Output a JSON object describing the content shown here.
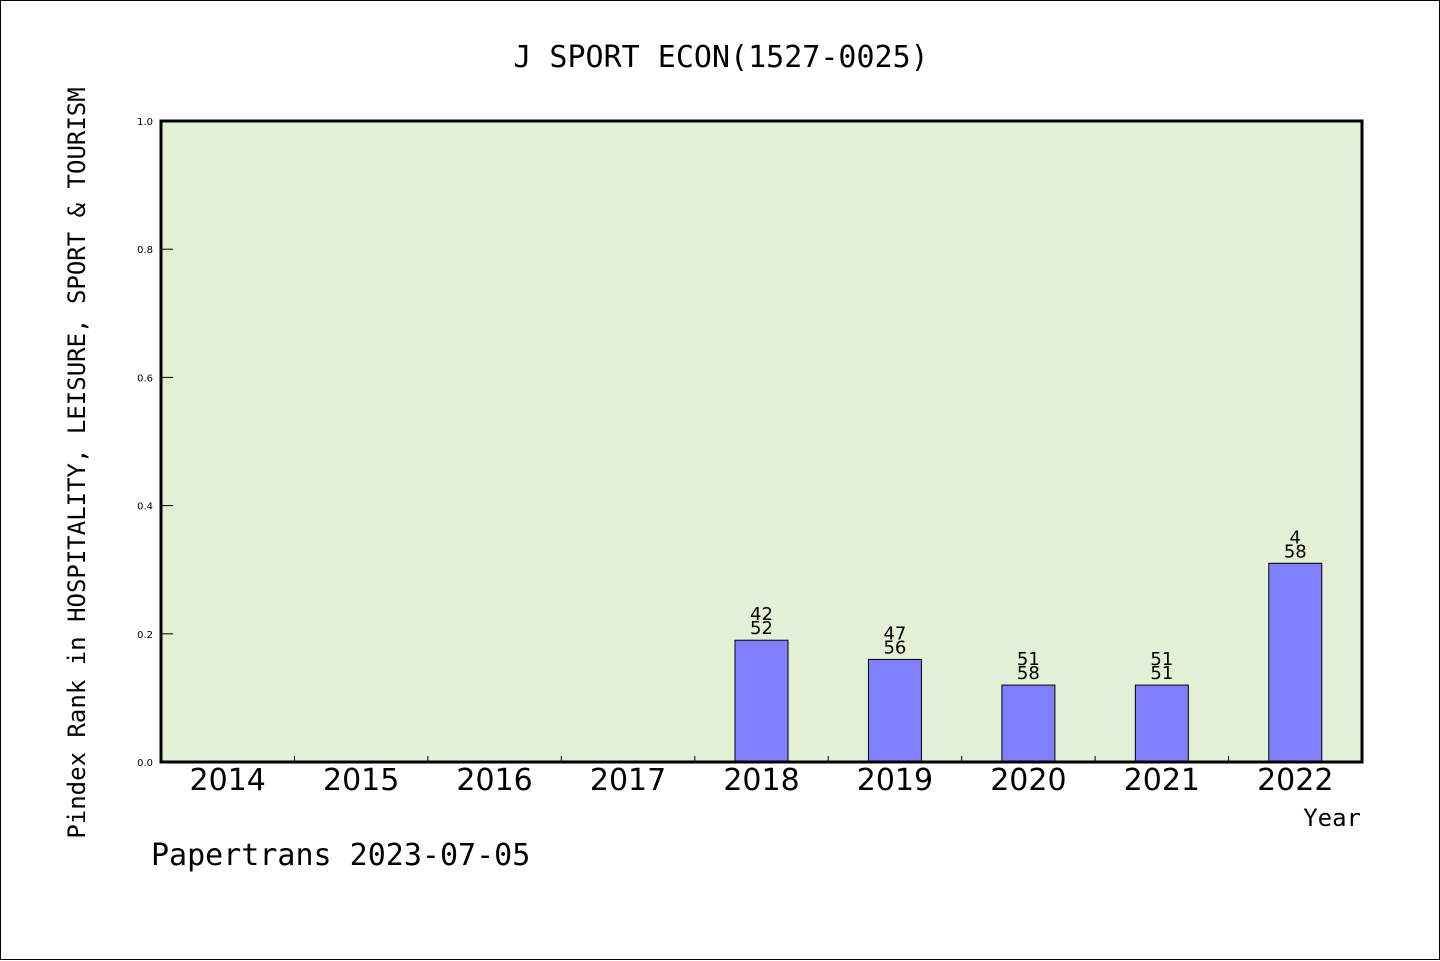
{
  "chart_data": {
    "type": "bar",
    "title": "J SPORT ECON(1527-0025)",
    "xlabel": "Year",
    "ylabel": "Pindex Rank in HOSPITALITY, LEISURE, SPORT & TOURISM",
    "ylim": [
      0,
      1
    ],
    "yticks": [
      "0.0",
      "0.2",
      "0.4",
      "0.6",
      "0.8",
      "1.0"
    ],
    "categories": [
      "2014",
      "2015",
      "2016",
      "2017",
      "2018",
      "2019",
      "2020",
      "2021",
      "2022"
    ],
    "values": [
      null,
      null,
      null,
      null,
      0.19,
      0.16,
      0.12,
      0.12,
      0.31
    ],
    "labels_top": [
      "",
      "",
      "",
      "",
      "42",
      "47",
      "51",
      "51",
      "4"
    ],
    "labels_bottom": [
      "",
      "",
      "",
      "",
      "52",
      "56",
      "58",
      "51",
      "58"
    ],
    "grid": false,
    "colors": {
      "plot_background": "#e2f0d6",
      "bar_fill": "#8080ff",
      "bar_stroke": "#000000"
    }
  },
  "footer": {
    "text": "Papertrans 2023-07-05"
  }
}
